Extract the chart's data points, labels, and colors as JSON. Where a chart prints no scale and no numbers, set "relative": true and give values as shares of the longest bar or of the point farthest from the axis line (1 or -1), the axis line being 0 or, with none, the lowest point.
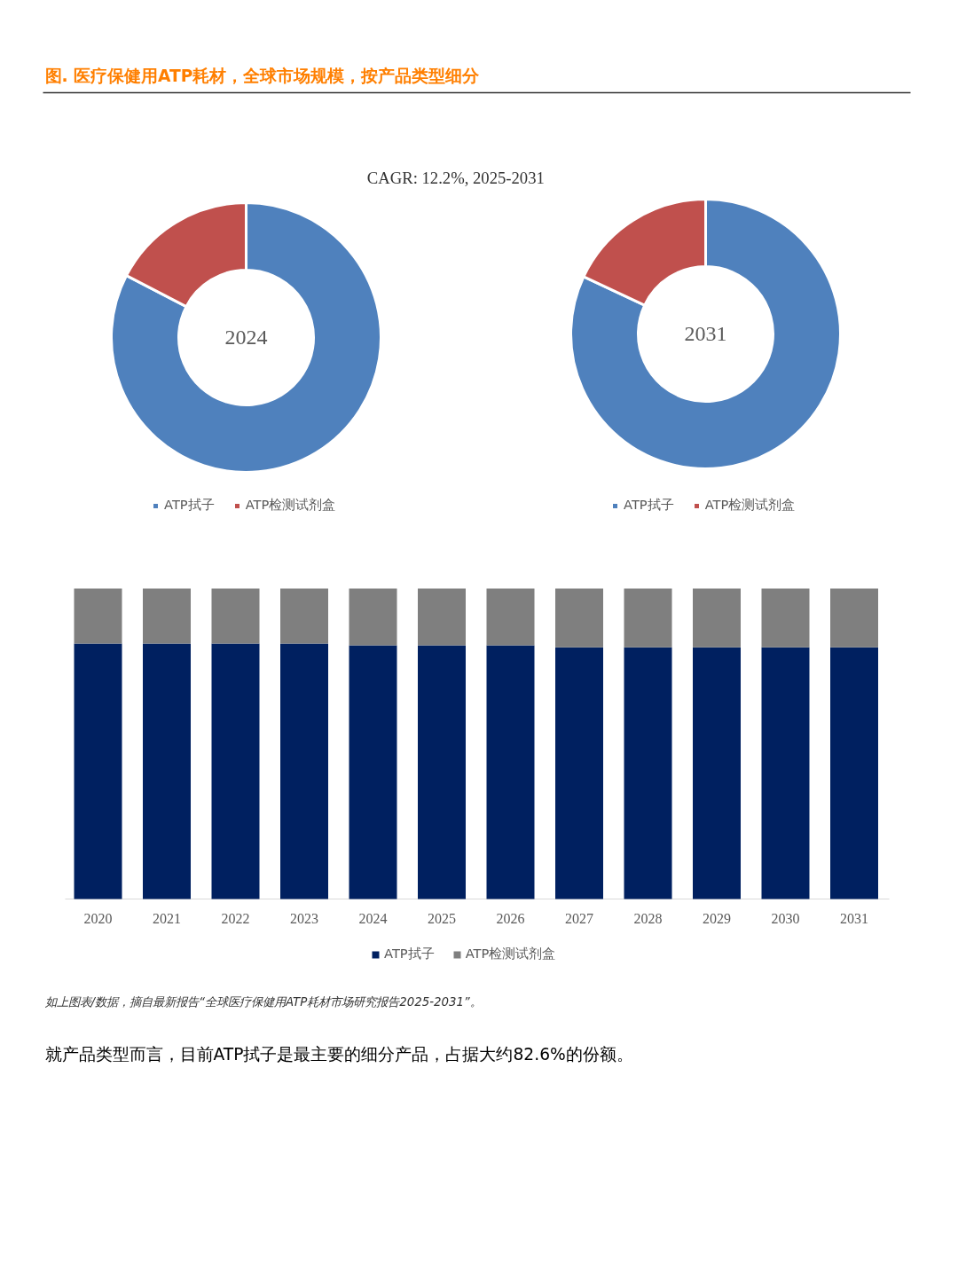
{
  "chart_data": [
    {
      "type": "donut",
      "title": "图.   医疗保健用ATP耗材，全球市场规模，按产品类型细分",
      "subtitle": "CAGR:   12.2%, 2025-2031",
      "annotations": [
        "2024"
      ],
      "categories": [
        "ATP拭子",
        "ATP检测试剂盒"
      ],
      "values": [
        82.6,
        17.4
      ],
      "colors": [
        "#4f81bd",
        "#c0504d"
      ],
      "legend": "bottom"
    },
    {
      "type": "donut",
      "annotations": [
        "2031"
      ],
      "categories": [
        "ATP拭子",
        "ATP检测试剂盒"
      ],
      "values": [
        82,
        18
      ],
      "colors": [
        "#4f81bd",
        "#c0504d"
      ],
      "legend": "bottom"
    },
    {
      "type": "bar",
      "stacked": true,
      "relative": true,
      "legend": "bottom",
      "categories": [
        "2020",
        "2021",
        "2022",
        "2023",
        "2024",
        "2025",
        "2026",
        "2027",
        "2028",
        "2029",
        "2030",
        "2031"
      ],
      "series": [
        {
          "name": "ATP拭子",
          "color": "#002060",
          "values": [
            0.823,
            0.823,
            0.823,
            0.823,
            0.817,
            0.817,
            0.817,
            0.811,
            0.811,
            0.811,
            0.811,
            0.811
          ]
        },
        {
          "name": "ATP检测试剂盒",
          "color": "#7f7f7f",
          "values": [
            0.177,
            0.177,
            0.177,
            0.177,
            0.183,
            0.183,
            0.183,
            0.189,
            0.189,
            0.189,
            0.189,
            0.189
          ]
        }
      ],
      "annotations": [
        "如上图表/数据，摘自最新报告“全球医疗保健用ATP耗材市场研究报告2025-2031”。",
        "就产品类型而言，目前ATP拭子是最主要的细分产品，占据大约82.6%的份额。"
      ]
    }
  ]
}
